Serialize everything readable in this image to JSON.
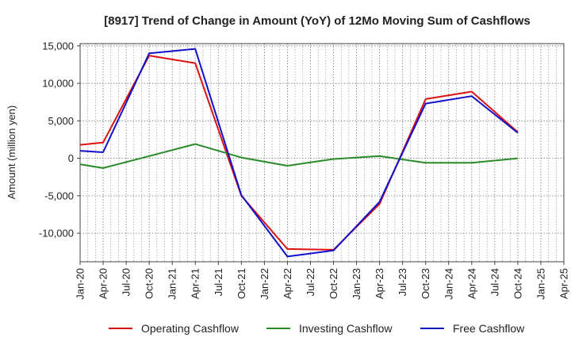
{
  "chart_data": {
    "type": "line",
    "title": "[8917]  Trend of Change in Amount (YoY) of 12Mo Moving Sum of Cashflows",
    "xlabel": "",
    "ylabel": "Amount (million yen)",
    "ylim": [
      -13800,
      15300
    ],
    "yticks": [
      15000,
      10000,
      5000,
      0,
      -5000,
      -10000
    ],
    "ytick_labels": [
      "15,000",
      "10,000",
      "5,000",
      "0",
      "-5,000",
      "-10,000"
    ],
    "categories": [
      "Jan-20",
      "Apr-20",
      "Jul-20",
      "Oct-20",
      "Jan-21",
      "Apr-21",
      "Jul-21",
      "Oct-21",
      "Jan-22",
      "Apr-22",
      "Jul-22",
      "Oct-22",
      "Jan-23",
      "Apr-23",
      "Jul-23",
      "Oct-23",
      "Jan-24",
      "Apr-24",
      "Jul-24",
      "Oct-24",
      "Jan-25",
      "Apr-25"
    ],
    "series": [
      {
        "name": "Operating Cashflow",
        "color": "#dd1111",
        "values": [
          1800,
          2100,
          null,
          13700,
          null,
          12700,
          null,
          -5000,
          null,
          -12100,
          null,
          -12200,
          null,
          -6100,
          null,
          7900,
          null,
          8900,
          null,
          3500,
          null,
          null
        ]
      },
      {
        "name": "Investing Cashflow",
        "color": "#2a8a2a",
        "values": [
          -800,
          -1300,
          null,
          300,
          null,
          1900,
          null,
          100,
          null,
          -1000,
          null,
          -100,
          null,
          300,
          null,
          -600,
          null,
          -600,
          null,
          0,
          null,
          null
        ]
      },
      {
        "name": "Free Cashflow",
        "color": "#1111cc",
        "values": [
          1000,
          800,
          null,
          14000,
          null,
          14600,
          null,
          -4900,
          null,
          -13100,
          null,
          -12300,
          null,
          -5800,
          null,
          7300,
          null,
          8300,
          null,
          3400,
          null,
          null
        ]
      }
    ],
    "grid": true,
    "legend": "bottom"
  }
}
